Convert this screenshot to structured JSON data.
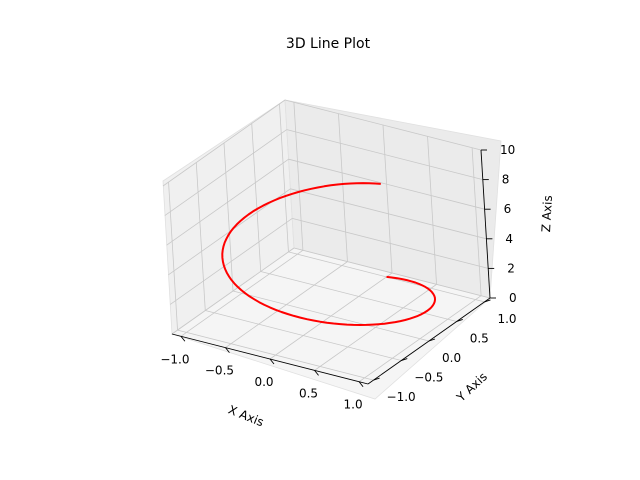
{
  "chart_data": {
    "type": "line",
    "projection": "3d",
    "title": "3D Line Plot",
    "xlabel": "X Axis",
    "ylabel": "Y Axis",
    "zlabel": "Z Axis",
    "xlim": [
      -1.1,
      1.1
    ],
    "ylim": [
      -1.1,
      1.1
    ],
    "zlim": [
      0,
      10
    ],
    "x_ticks": [
      "−1.0",
      "−0.5",
      "0.0",
      "0.5",
      "1.0"
    ],
    "y_ticks": [
      "−1.0",
      "−0.5",
      "0.0",
      "0.5",
      "1.0"
    ],
    "z_ticks": [
      "0",
      "2",
      "4",
      "6",
      "8",
      "10"
    ],
    "grid": true,
    "series": [
      {
        "color": "#ff0000",
        "curve": "helix",
        "x_expr": "sin(t)",
        "y_expr": "cos(t)",
        "z_expr": "t",
        "t_range": [
          0,
          6.283
        ],
        "samples": 100
      }
    ]
  }
}
